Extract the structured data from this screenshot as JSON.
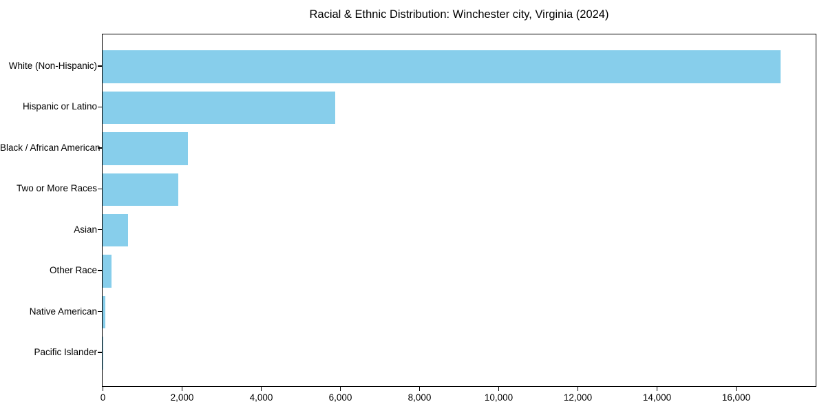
{
  "chart_data": {
    "type": "bar",
    "orientation": "horizontal",
    "title": "Racial & Ethnic Distribution: Winchester city, Virginia (2024)",
    "categories": [
      "White (Non-Hispanic)",
      "Hispanic or Latino",
      "Black / African American",
      "Two or More Races",
      "Asian",
      "Other Race",
      "Native American",
      "Pacific Islander"
    ],
    "values": [
      17130,
      5870,
      2150,
      1910,
      640,
      220,
      70,
      10
    ],
    "xlabel": "",
    "ylabel": "",
    "xlim": [
      0,
      18000
    ],
    "xticks": [
      0,
      2000,
      4000,
      6000,
      8000,
      10000,
      12000,
      14000,
      16000
    ],
    "xtick_labels": [
      "0",
      "2,000",
      "4,000",
      "6,000",
      "8,000",
      "10,000",
      "12,000",
      "14,000",
      "16,000"
    ],
    "bar_color": "#87CEEB",
    "text_color": "#000000",
    "grid": false,
    "legend": null
  }
}
